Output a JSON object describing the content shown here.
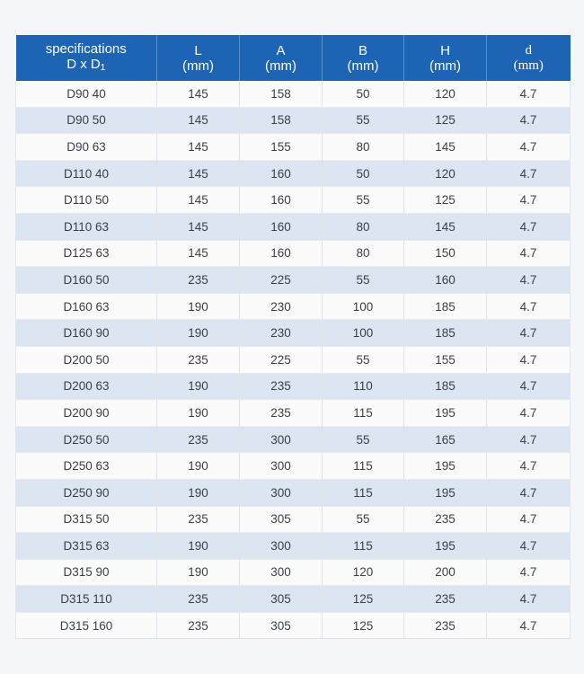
{
  "table": {
    "headers": [
      {
        "line1": "specifications",
        "line2": "D x D",
        "line2_sub": "1"
      },
      {
        "line1": "L",
        "line2": "(mm)"
      },
      {
        "line1": "A",
        "line2": "(mm)"
      },
      {
        "line1": "B",
        "line2": "(mm)"
      },
      {
        "line1": "H",
        "line2": "(mm)"
      },
      {
        "line1": "d",
        "line2": "(mm)"
      }
    ],
    "rows": [
      [
        "D90 40",
        "145",
        "158",
        "50",
        "120",
        "4.7"
      ],
      [
        "D90 50",
        "145",
        "158",
        "55",
        "125",
        "4.7"
      ],
      [
        "D90 63",
        "145",
        "155",
        "80",
        "145",
        "4.7"
      ],
      [
        "D110 40",
        "145",
        "160",
        "50",
        "120",
        "4.7"
      ],
      [
        "D110 50",
        "145",
        "160",
        "55",
        "125",
        "4.7"
      ],
      [
        "D110 63",
        "145",
        "160",
        "80",
        "145",
        "4.7"
      ],
      [
        "D125 63",
        "145",
        "160",
        "80",
        "150",
        "4.7"
      ],
      [
        "D160 50",
        "235",
        "225",
        "55",
        "160",
        "4.7"
      ],
      [
        "D160 63",
        "190",
        "230",
        "100",
        "185",
        "4.7"
      ],
      [
        "D160 90",
        "190",
        "230",
        "100",
        "185",
        "4.7"
      ],
      [
        "D200 50",
        "235",
        "225",
        "55",
        "155",
        "4.7"
      ],
      [
        "D200 63",
        "190",
        "235",
        "110",
        "185",
        "4.7"
      ],
      [
        "D200 90",
        "190",
        "235",
        "115",
        "195",
        "4.7"
      ],
      [
        "D250 50",
        "235",
        "300",
        "55",
        "165",
        "4.7"
      ],
      [
        "D250 63",
        "190",
        "300",
        "115",
        "195",
        "4.7"
      ],
      [
        "D250 90",
        "190",
        "300",
        "115",
        "195",
        "4.7"
      ],
      [
        "D315 50",
        "235",
        "305",
        "55",
        "235",
        "4.7"
      ],
      [
        "D315 63",
        "190",
        "300",
        "115",
        "195",
        "4.7"
      ],
      [
        "D315 90",
        "190",
        "300",
        "120",
        "200",
        "4.7"
      ],
      [
        "D315 110",
        "235",
        "305",
        "125",
        "235",
        "4.7"
      ],
      [
        "D315 160",
        "235",
        "305",
        "125",
        "235",
        "4.7"
      ]
    ]
  },
  "colors": {
    "header_bg": "#1e64b4",
    "header_text": "#ffffff",
    "row_odd": "#fbfbfc",
    "row_even": "#dbe6f2",
    "cell_text": "#3a3f45"
  }
}
